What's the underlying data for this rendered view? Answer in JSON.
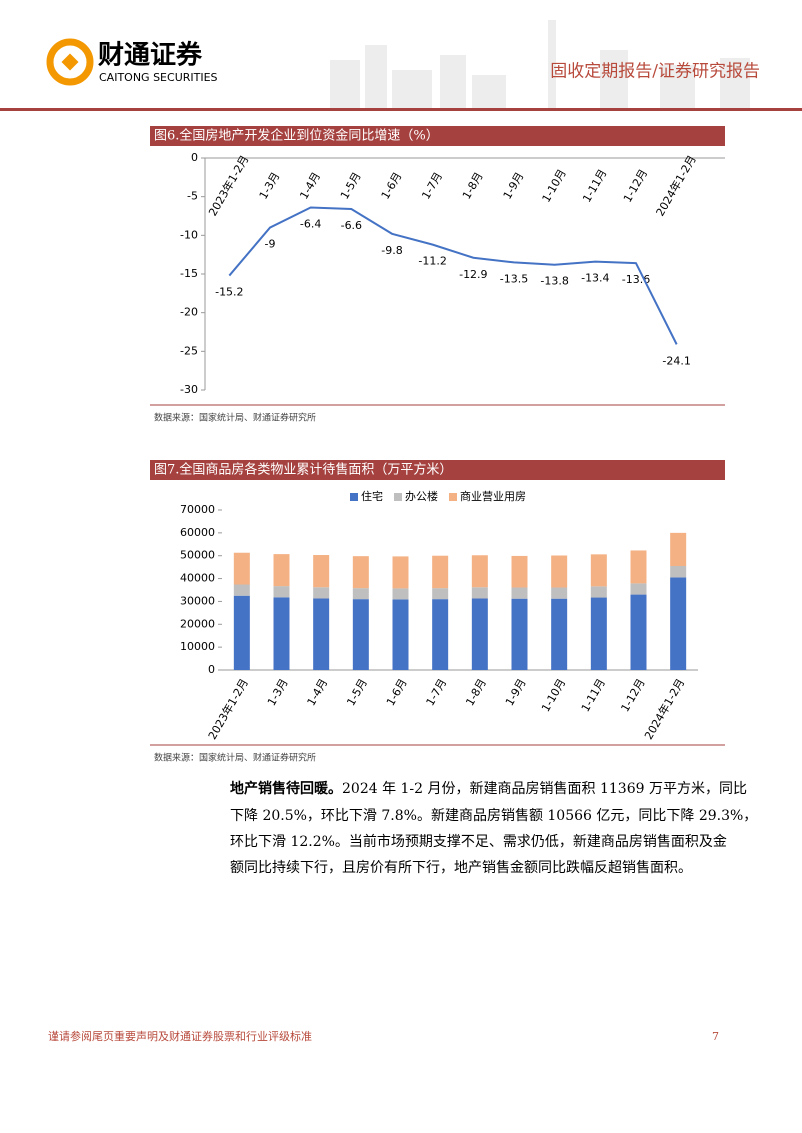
{
  "header": {
    "brand": "财通证券",
    "brand_en": "CAITONG SECURITIES",
    "report_type": "固收定期报告/证券研究报告"
  },
  "chart_data": [
    {
      "type": "line",
      "title": "图6.全国房地产开发企业到位资金同比增速（%）",
      "categories": [
        "2023年1-2月",
        "1-3月",
        "1-4月",
        "1-5月",
        "1-6月",
        "1-7月",
        "1-8月",
        "1-9月",
        "1-10月",
        "1-11月",
        "1-12月",
        "2024年1-2月"
      ],
      "values": [
        -15.2,
        -9,
        -6.4,
        -6.6,
        -9.8,
        -11.2,
        -12.9,
        -13.5,
        -13.8,
        -13.4,
        -13.6,
        -24.1
      ],
      "color": "#4472c4",
      "ylim": [
        -30,
        0
      ],
      "yticks": [
        0,
        -5,
        -10,
        -15,
        -20,
        -25,
        -30
      ],
      "source": "数据来源：国家统计局、财通证券研究所"
    },
    {
      "type": "bar",
      "title": "图7.全国商品房各类物业累计待售面积（万平方米）",
      "categories": [
        "2023年1-2月",
        "1-3月",
        "1-4月",
        "1-5月",
        "1-6月",
        "1-7月",
        "1-8月",
        "1-9月",
        "1-10月",
        "1-11月",
        "1-12月",
        "2024年1-2月"
      ],
      "series": [
        {
          "name": "住宅",
          "color": "#4472c4",
          "values": [
            32500,
            31800,
            31300,
            31000,
            30900,
            31000,
            31300,
            31200,
            31200,
            31700,
            33000,
            40500
          ]
        },
        {
          "name": "办公楼",
          "color": "#bfbfbf",
          "values": [
            4900,
            4900,
            4900,
            4800,
            4800,
            4800,
            4900,
            4900,
            4900,
            4900,
            4900,
            5000
          ]
        },
        {
          "name": "商业营业用房",
          "color": "#f4b183",
          "values": [
            13900,
            14000,
            14100,
            14000,
            14000,
            14200,
            14000,
            13800,
            14000,
            14000,
            14400,
            14500
          ]
        }
      ],
      "ylim": [
        0,
        70000
      ],
      "yticks": [
        0,
        10000,
        20000,
        30000,
        40000,
        50000,
        60000,
        70000
      ],
      "source": "数据来源：国家统计局、财通证券研究所"
    }
  ],
  "paragraph": {
    "lead": "地产销售待回暖。",
    "lines": [
      "2024 年 1-2 月份，新建商品房销售面积 11369 万平方米，同比",
      "下降 20.5%，环比下滑 7.8%。新建商品房销售额 10566 亿元，同比下降 29.3%，",
      "环比下滑 12.2%。当前市场预期支撑不足、需求仍低，新建商品房销售面积及金",
      "额同比持续下行，且房价有所下行，地产销售金额同比跌幅反超销售面积。"
    ]
  },
  "footer": {
    "disclaimer": "谨请参阅尾页重要声明及财通证券股票和行业评级标准",
    "page": "7"
  }
}
